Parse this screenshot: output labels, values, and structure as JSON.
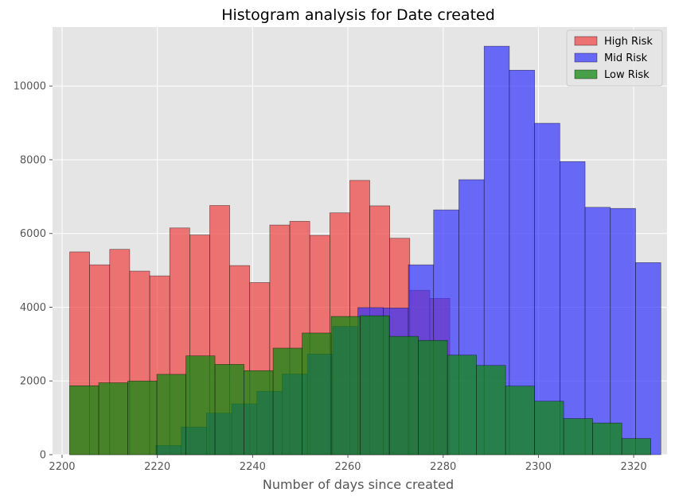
{
  "chart_data": {
    "type": "bar",
    "title": "Histogram analysis for Date created",
    "xlabel": "Number of days since created",
    "ylabel": "",
    "xlim": [
      2198,
      2327
    ],
    "ylim": [
      0,
      11600
    ],
    "xticks": [
      2200,
      2220,
      2240,
      2260,
      2280,
      2300,
      2320
    ],
    "yticks": [
      0,
      2000,
      4000,
      6000,
      8000,
      10000
    ],
    "grid": true,
    "legend_position": "top-right",
    "series": [
      {
        "name": "High Risk",
        "color": "#f04040",
        "opacity": 0.7,
        "bins": [
          [
            2201.6,
            2205.8,
            5500
          ],
          [
            2205.8,
            2210.0,
            5150
          ],
          [
            2210.0,
            2214.2,
            5570
          ],
          [
            2214.2,
            2218.4,
            4980
          ],
          [
            2218.4,
            2222.6,
            4850
          ],
          [
            2222.6,
            2226.8,
            6150
          ],
          [
            2226.8,
            2231.0,
            5960
          ],
          [
            2231.0,
            2235.2,
            6760
          ],
          [
            2235.2,
            2239.4,
            5130
          ],
          [
            2239.4,
            2243.6,
            4670
          ],
          [
            2243.6,
            2247.8,
            6230
          ],
          [
            2247.8,
            2252.0,
            6330
          ],
          [
            2252.0,
            2256.2,
            5950
          ],
          [
            2256.2,
            2260.4,
            6560
          ],
          [
            2260.4,
            2264.6,
            7440
          ],
          [
            2264.6,
            2268.8,
            6750
          ],
          [
            2268.8,
            2273.0,
            5870
          ],
          [
            2273.0,
            2277.2,
            4460
          ],
          [
            2277.2,
            2281.4,
            4240
          ]
        ]
      },
      {
        "name": "Mid Risk",
        "color": "#3333ff",
        "opacity": 0.7,
        "bins": [
          [
            2219.7,
            2225.0,
            250
          ],
          [
            2225.0,
            2230.3,
            750
          ],
          [
            2230.3,
            2235.6,
            1130
          ],
          [
            2235.6,
            2240.9,
            1380
          ],
          [
            2240.9,
            2246.2,
            1720
          ],
          [
            2246.2,
            2251.5,
            2190
          ],
          [
            2251.5,
            2256.8,
            2730
          ],
          [
            2256.8,
            2262.1,
            3480
          ],
          [
            2262.1,
            2267.4,
            3990
          ],
          [
            2267.4,
            2272.7,
            3980
          ],
          [
            2272.7,
            2278.0,
            5150
          ],
          [
            2278.0,
            2283.3,
            6640
          ],
          [
            2283.3,
            2288.6,
            7460
          ],
          [
            2288.6,
            2293.9,
            11080
          ],
          [
            2293.9,
            2299.2,
            10430
          ],
          [
            2299.2,
            2304.5,
            8990
          ],
          [
            2304.5,
            2309.8,
            7950
          ],
          [
            2309.8,
            2315.1,
            6710
          ],
          [
            2315.1,
            2320.4,
            6680
          ],
          [
            2320.4,
            2325.7,
            5210
          ]
        ]
      },
      {
        "name": "Low Risk",
        "color": "#118811",
        "opacity": 0.75,
        "bins": [
          [
            2201.6,
            2207.7,
            1870
          ],
          [
            2207.7,
            2213.8,
            1950
          ],
          [
            2213.8,
            2219.9,
            2000
          ],
          [
            2219.9,
            2226.0,
            2180
          ],
          [
            2226.0,
            2232.1,
            2680
          ],
          [
            2232.1,
            2238.2,
            2450
          ],
          [
            2238.2,
            2244.3,
            2280
          ],
          [
            2244.3,
            2250.4,
            2890
          ],
          [
            2250.4,
            2256.5,
            3300
          ],
          [
            2256.5,
            2262.6,
            3750
          ],
          [
            2262.6,
            2268.7,
            3770
          ],
          [
            2268.7,
            2274.8,
            3210
          ],
          [
            2274.8,
            2280.9,
            3100
          ],
          [
            2280.9,
            2287.0,
            2700
          ],
          [
            2287.0,
            2293.1,
            2420
          ],
          [
            2293.1,
            2299.2,
            1860
          ],
          [
            2299.2,
            2305.3,
            1450
          ],
          [
            2305.3,
            2311.4,
            980
          ],
          [
            2311.4,
            2317.5,
            860
          ],
          [
            2317.5,
            2323.6,
            440
          ]
        ]
      }
    ]
  }
}
